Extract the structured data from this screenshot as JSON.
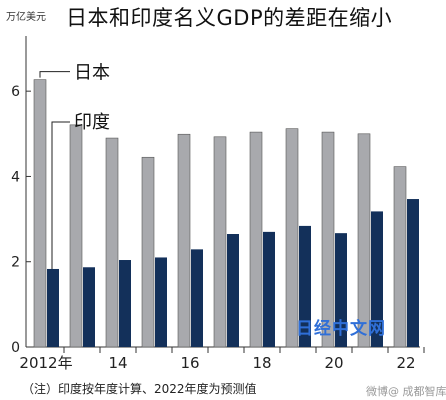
{
  "title": "日本和印度名义GDP的差距在缩小",
  "unit_label": "万亿美元",
  "note": "（注）印度按年度计算、2022年度为预测值",
  "watermark": "日经中文网",
  "source_tag": "微博@ 成都智库",
  "colors": {
    "japan": "#a8a9ad",
    "india": "#13305a",
    "axis": "#333333"
  },
  "chart_data": {
    "type": "bar",
    "title": "日本和印度名义GDP的差距在缩小",
    "ylabel": "万亿美元",
    "ylim": [
      0,
      7.2
    ],
    "yticks": [
      0,
      2,
      4,
      6
    ],
    "categories": [
      "2012",
      "2013",
      "2014",
      "2015",
      "2016",
      "2017",
      "2018",
      "2019",
      "2020",
      "2021",
      "2022"
    ],
    "x_tick_labels": [
      "2012年",
      "",
      "14",
      "",
      "16",
      "",
      "18",
      "",
      "20",
      "",
      "22"
    ],
    "series": [
      {
        "name": "日本",
        "values": [
          6.27,
          5.21,
          4.9,
          4.45,
          4.99,
          4.93,
          5.04,
          5.12,
          5.04,
          5.0,
          4.23
        ]
      },
      {
        "name": "印度",
        "values": [
          1.83,
          1.87,
          2.04,
          2.1,
          2.29,
          2.65,
          2.7,
          2.84,
          2.67,
          3.18,
          3.47
        ]
      }
    ],
    "legend_placement": "annotated beside first group",
    "grid": false
  }
}
